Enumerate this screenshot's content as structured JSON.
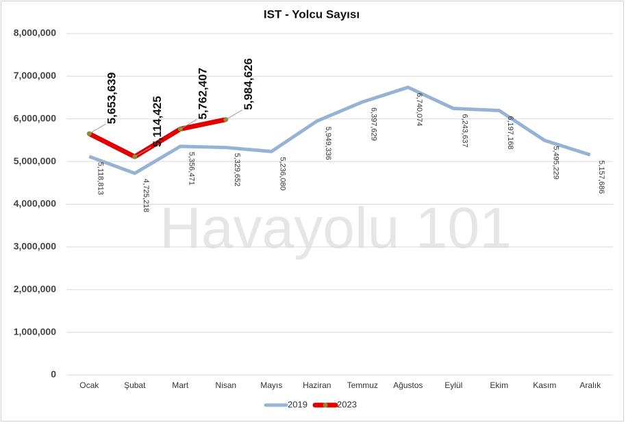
{
  "chart_data": {
    "type": "line",
    "title": "IST - Yolcu Sayısı",
    "annotations": [
      "Havayolu 101"
    ],
    "categories": [
      "Ocak",
      "Şubat",
      "Mart",
      "Nisan",
      "Mayıs",
      "Haziran",
      "Temmuz",
      "Ağustos",
      "Eylül",
      "Ekim",
      "Kasım",
      "Aralık"
    ],
    "series": [
      {
        "name": "2019",
        "color": "#97b3d3",
        "values": [
          5118813,
          4725218,
          5356471,
          5329652,
          5236080,
          5949336,
          6397629,
          6740074,
          6243637,
          6197168,
          5495229,
          5157686
        ],
        "value_labels": [
          "5,118,813",
          "4,725,218",
          "5,356,471",
          "5,329,652",
          "5,236,080",
          "5,949,336",
          "6,397,629",
          "6,740,074",
          "6,243,637",
          "6,197,168",
          "5,495,229",
          "5,157,686"
        ]
      },
      {
        "name": "2023",
        "color": "#e00000",
        "marker_color": "#8c8c30",
        "values": [
          5653639,
          5114425,
          5762407,
          5984626,
          null,
          null,
          null,
          null,
          null,
          null,
          null,
          null
        ],
        "value_labels": [
          "5,653,639",
          "5,114,425",
          "5,762,407",
          "5,984,626",
          null,
          null,
          null,
          null,
          null,
          null,
          null,
          null
        ]
      }
    ],
    "ylim": [
      0,
      8000000
    ],
    "yticks": [
      0,
      {
        "value": 1000000,
        "label": "1,000,000"
      },
      {
        "value": 2000000,
        "label": "2,000,000"
      },
      {
        "value": 3000000,
        "label": "3,000,000"
      },
      {
        "value": 4000000,
        "label": "4,000,000"
      },
      {
        "value": 5000000,
        "label": "5,000,000"
      },
      {
        "value": 6000000,
        "label": "6,000,000"
      },
      {
        "value": 7000000,
        "label": "7,000,000"
      },
      {
        "value": 8000000,
        "label": "8,000,000"
      }
    ],
    "grid": true,
    "legend": "bottom"
  }
}
